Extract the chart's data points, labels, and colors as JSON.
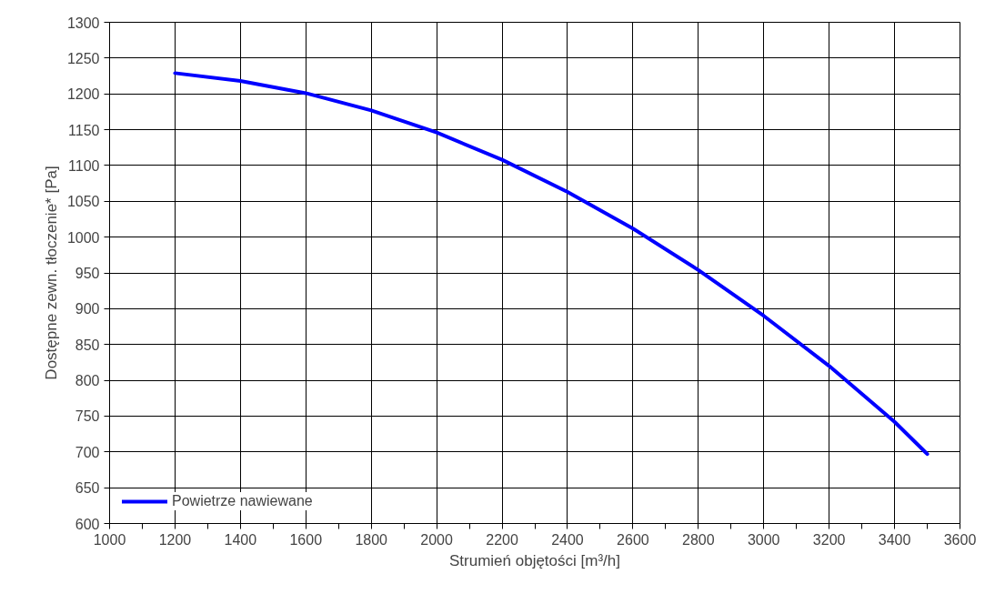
{
  "chart_data": {
    "type": "line",
    "xlabel": "Strumień objętości [m³/h]",
    "ylabel": "Dostępne zewn. tłoczenie* [Pa]",
    "x": [
      1200,
      1400,
      1600,
      1800,
      2000,
      2200,
      2400,
      2600,
      2800,
      3000,
      3200,
      3400,
      3500
    ],
    "series": [
      {
        "name": "Powietrze nawiewane",
        "color": "#0000ff",
        "values": [
          1229,
          1218,
          1201,
          1177,
          1146,
          1108,
          1063,
          1012,
          954,
          890,
          820,
          742,
          697
        ]
      }
    ],
    "xlim": [
      1000,
      3600
    ],
    "xticks": [
      1000,
      {
        "value": 1100,
        "label": null
      },
      1200,
      {
        "value": 1300,
        "label": null
      },
      1400,
      {
        "value": 1500,
        "label": null
      },
      1600,
      {
        "value": 1700,
        "label": null
      },
      1800,
      {
        "value": 1900,
        "label": null
      },
      2000,
      {
        "value": 2100,
        "label": null
      },
      2200,
      {
        "value": 2300,
        "label": null
      },
      2400,
      {
        "value": 2500,
        "label": null
      },
      2600,
      {
        "value": 2700,
        "label": null
      },
      2800,
      {
        "value": 2900,
        "label": null
      },
      3000,
      {
        "value": 3100,
        "label": null
      },
      3200,
      {
        "value": 3300,
        "label": null
      },
      3400,
      {
        "value": 3500,
        "label": null
      },
      3600
    ],
    "ylim": [
      600,
      1300
    ],
    "yticks": [
      600,
      650,
      700,
      750,
      800,
      850,
      900,
      950,
      1000,
      1050,
      1100,
      1150,
      1200,
      1250,
      1300
    ],
    "grid": true,
    "legend": "bottom left",
    "marker": "none",
    "line_style": "solid"
  }
}
